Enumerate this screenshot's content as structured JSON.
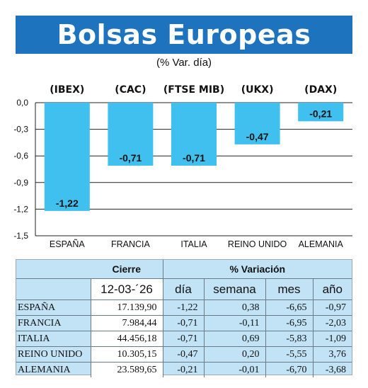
{
  "header": {
    "title": "Bolsas Europeas",
    "subtitle": "(% Var. día)"
  },
  "chart_data": {
    "type": "bar",
    "title": "Bolsas Europeas",
    "subtitle": "(% Var. día)",
    "categories": [
      "ESPAÑA",
      "FRANCIA",
      "ITALIA",
      "REINO UNIDO",
      "ALEMANIA"
    ],
    "index_codes": [
      "(IBEX)",
      "(CAC)",
      "(FTSE MIB)",
      "(UKX)",
      "(DAX)"
    ],
    "values": [
      -1.22,
      -0.71,
      -0.71,
      -0.47,
      -0.21
    ],
    "value_labels": [
      "-1,22",
      "-0,71",
      "-0,71",
      "-0,47",
      "-0,21"
    ],
    "yticks": [
      0.0,
      -0.3,
      -0.6,
      -0.9,
      -1.2,
      -1.5
    ],
    "ytick_labels": [
      "0,0",
      "-0,3",
      "-0,6",
      "-0,9",
      "-1,2",
      "-1,5"
    ],
    "ylim": [
      -1.5,
      0
    ],
    "grid": true,
    "bar_color": "#40c0ef"
  },
  "table": {
    "header_cierre": "Cierre",
    "header_variacion": "% Variación",
    "date": "12-03-´26",
    "col_dia": "día",
    "col_semana": "semana",
    "col_mes": "mes",
    "col_ano": "año",
    "rows": [
      {
        "name": "ESPAÑA",
        "cierre": "17.139,90",
        "dia": "-1,22",
        "semana": "0,38",
        "mes": "-6,65",
        "ano": "-0,97"
      },
      {
        "name": "FRANCIA",
        "cierre": "7.984,44",
        "dia": "-0,71",
        "semana": "-0,11",
        "mes": "-6,95",
        "ano": "-2,03"
      },
      {
        "name": "ITALIA",
        "cierre": "44.456,18",
        "dia": "-0,71",
        "semana": "0,69",
        "mes": "-5,83",
        "ano": "-1,09"
      },
      {
        "name": "REINO UNIDO",
        "cierre": "10.305,15",
        "dia": "-0,47",
        "semana": "0,20",
        "mes": "-5,55",
        "ano": "3,76"
      },
      {
        "name": "ALEMANIA",
        "cierre": "23.589,65",
        "dia": "-0,21",
        "semana": "-0,01",
        "mes": "-6,70",
        "ano": "-3,68"
      }
    ]
  },
  "colors": {
    "title_bar": "#1e73be",
    "bar": "#40c0ef",
    "table_bg": "#c2e3f5"
  }
}
